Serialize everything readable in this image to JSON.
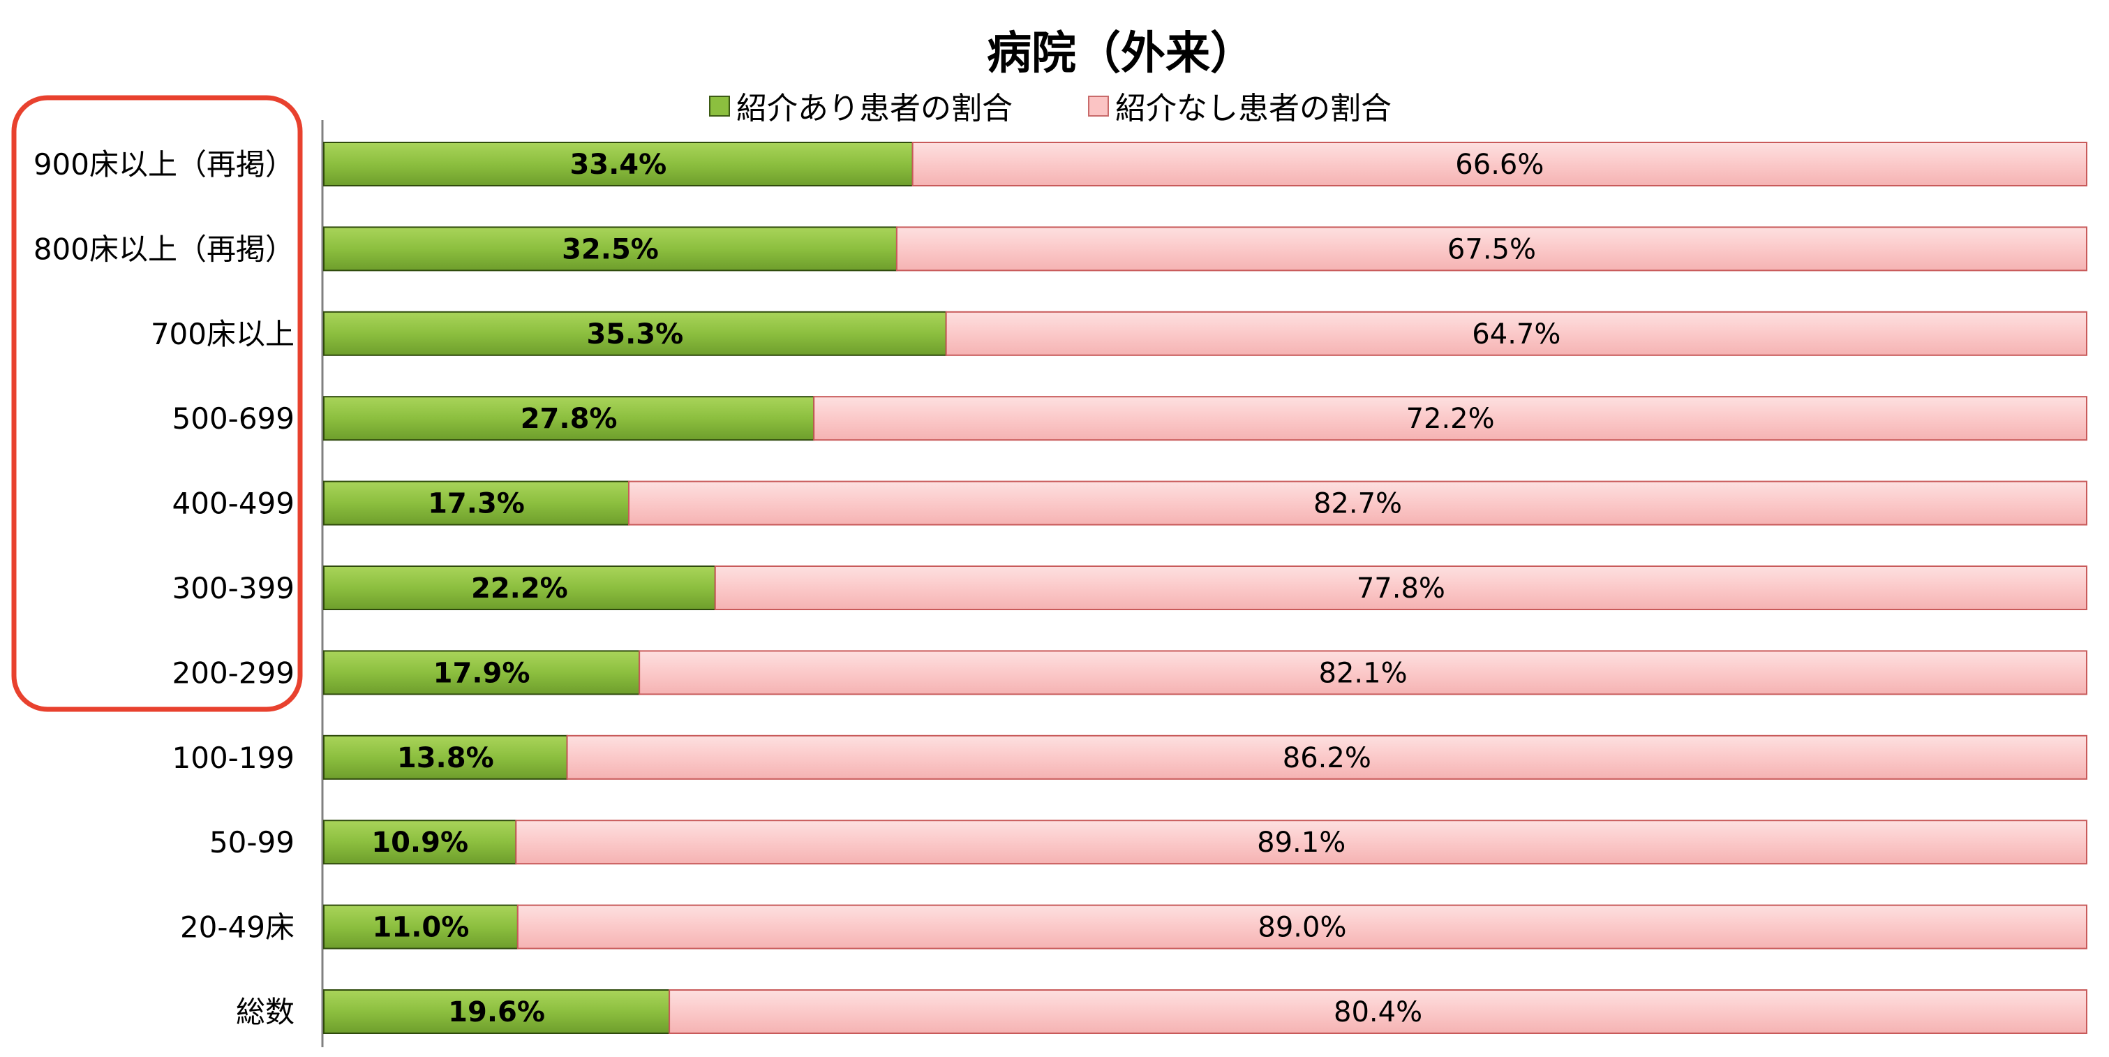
{
  "chart_data": {
    "type": "bar",
    "orientation": "horizontal",
    "stacked": "percent",
    "title": "病院（外来）",
    "categories": [
      "900床以上（再掲）",
      "800床以上（再掲）",
      "700床以上",
      "500-699",
      "400-499",
      "300-399",
      "200-299",
      "100-199",
      "50-99",
      "20-49床",
      "総数"
    ],
    "series": [
      {
        "name": "紹介あり患者の割合",
        "color": "#8cbf3f",
        "values": [
          33.4,
          32.5,
          35.3,
          27.8,
          17.3,
          22.2,
          17.9,
          13.8,
          10.9,
          11.0,
          19.6
        ],
        "labels": [
          "33.4%",
          "32.5%",
          "35.3%",
          "27.8%",
          "17.3%",
          "22.2%",
          "17.9%",
          "13.8%",
          "10.9%",
          "11.0%",
          "19.6%"
        ]
      },
      {
        "name": "紹介なし患者の割合",
        "color": "#fbc4c4",
        "values": [
          66.6,
          67.5,
          64.7,
          72.2,
          82.7,
          77.8,
          82.1,
          86.2,
          89.1,
          89.0,
          80.4
        ],
        "labels": [
          "66.6%",
          "67.5%",
          "64.7%",
          "72.2%",
          "82.7%",
          "77.8%",
          "82.1%",
          "86.2%",
          "89.1%",
          "89.0%",
          "80.4%"
        ]
      }
    ],
    "xlim": [
      0,
      100
    ],
    "grid": false,
    "legend": "top",
    "highlight_categories": [
      "900床以上（再掲）",
      "800床以上（再掲）",
      "700床以上",
      "500-699",
      "400-499",
      "300-399",
      "200-299"
    ],
    "highlight_color": "#e8412e"
  }
}
